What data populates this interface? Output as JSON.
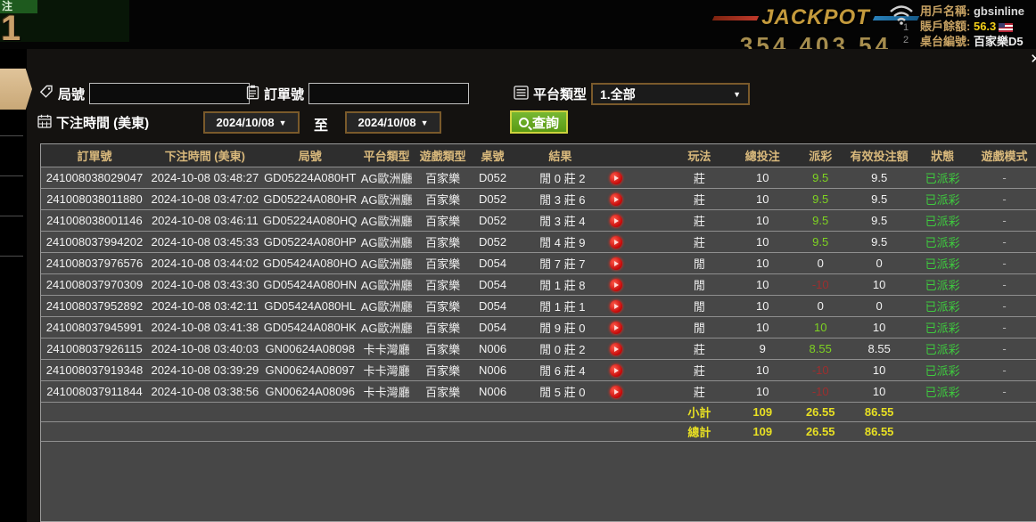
{
  "icons": {
    "dropdown_arrow": "▼",
    "close": "✕"
  },
  "top_bar": {
    "bet_label": "注",
    "bet_number": "1",
    "jackpot_label": "JACKPOT",
    "jackpot_value": "354 403 54",
    "user_label": "用戶名稱:",
    "user_value": "gbsinline",
    "balance_label": "賬戶餘額:",
    "balance_value": "56.3",
    "table_label": "桌台編號:",
    "table_value": "百家樂D5",
    "marker_1": "1",
    "marker_2": "2"
  },
  "modal": {
    "filters": {
      "round_label": "局號",
      "round_value": "",
      "order_label": "訂單號",
      "order_value": "",
      "platform_label": "平台類型",
      "platform_value": "1.全部",
      "time_label": "下注時間 (美東)",
      "date_from": "2024/10/08",
      "to_label": "至",
      "date_to": "2024/10/08",
      "search_label": "查詢"
    },
    "table": {
      "headers": [
        "訂單號",
        "下注時間 (美東)",
        "局號",
        "平台類型",
        "遊戲類型",
        "桌號",
        "結果",
        "玩法",
        "總投注",
        "派彩",
        "有效投注額",
        "狀態",
        "遊戲模式"
      ],
      "rows": [
        {
          "order": "241008038029047",
          "time": "2024-10-08 03:48:27",
          "round": "GD05224A080HT",
          "platform": "AG歐洲廳",
          "game": "百家樂",
          "table": "D052",
          "result": "閒 0 莊 2",
          "play": "莊",
          "total_bet": "10",
          "payout": "9.5",
          "payout_tone": "pos",
          "valid_bet": "9.5",
          "status": "已派彩",
          "mode": "-"
        },
        {
          "order": "241008038011880",
          "time": "2024-10-08 03:47:02",
          "round": "GD05224A080HR",
          "platform": "AG歐洲廳",
          "game": "百家樂",
          "table": "D052",
          "result": "閒 3 莊 6",
          "play": "莊",
          "total_bet": "10",
          "payout": "9.5",
          "payout_tone": "pos",
          "valid_bet": "9.5",
          "status": "已派彩",
          "mode": "-"
        },
        {
          "order": "241008038001146",
          "time": "2024-10-08 03:46:11",
          "round": "GD05224A080HQ",
          "platform": "AG歐洲廳",
          "game": "百家樂",
          "table": "D052",
          "result": "閒 3 莊 4",
          "play": "莊",
          "total_bet": "10",
          "payout": "9.5",
          "payout_tone": "pos",
          "valid_bet": "9.5",
          "status": "已派彩",
          "mode": "-"
        },
        {
          "order": "241008037994202",
          "time": "2024-10-08 03:45:33",
          "round": "GD05224A080HP",
          "platform": "AG歐洲廳",
          "game": "百家樂",
          "table": "D052",
          "result": "閒 4 莊 9",
          "play": "莊",
          "total_bet": "10",
          "payout": "9.5",
          "payout_tone": "pos",
          "valid_bet": "9.5",
          "status": "已派彩",
          "mode": "-"
        },
        {
          "order": "241008037976576",
          "time": "2024-10-08 03:44:02",
          "round": "GD05424A080HO",
          "platform": "AG歐洲廳",
          "game": "百家樂",
          "table": "D054",
          "result": "閒 7 莊 7",
          "play": "閒",
          "total_bet": "10",
          "payout": "0",
          "payout_tone": "zero",
          "valid_bet": "0",
          "status": "已派彩",
          "mode": "-"
        },
        {
          "order": "241008037970309",
          "time": "2024-10-08 03:43:30",
          "round": "GD05424A080HN",
          "platform": "AG歐洲廳",
          "game": "百家樂",
          "table": "D054",
          "result": "閒 1 莊 8",
          "play": "閒",
          "total_bet": "10",
          "payout": "-10",
          "payout_tone": "neg",
          "valid_bet": "10",
          "status": "已派彩",
          "mode": "-"
        },
        {
          "order": "241008037952892",
          "time": "2024-10-08 03:42:11",
          "round": "GD05424A080HL",
          "platform": "AG歐洲廳",
          "game": "百家樂",
          "table": "D054",
          "result": "閒 1 莊 1",
          "play": "閒",
          "total_bet": "10",
          "payout": "0",
          "payout_tone": "zero",
          "valid_bet": "0",
          "status": "已派彩",
          "mode": "-"
        },
        {
          "order": "241008037945991",
          "time": "2024-10-08 03:41:38",
          "round": "GD05424A080HK",
          "platform": "AG歐洲廳",
          "game": "百家樂",
          "table": "D054",
          "result": "閒 9 莊 0",
          "play": "閒",
          "total_bet": "10",
          "payout": "10",
          "payout_tone": "pos",
          "valid_bet": "10",
          "status": "已派彩",
          "mode": "-"
        },
        {
          "order": "241008037926115",
          "time": "2024-10-08 03:40:03",
          "round": "GN00624A08098",
          "platform": "卡卡灣廳",
          "game": "百家樂",
          "table": "N006",
          "result": "閒 0 莊 2",
          "play": "莊",
          "total_bet": "9",
          "payout": "8.55",
          "payout_tone": "pos",
          "valid_bet": "8.55",
          "status": "已派彩",
          "mode": "-"
        },
        {
          "order": "241008037919348",
          "time": "2024-10-08 03:39:29",
          "round": "GN00624A08097",
          "platform": "卡卡灣廳",
          "game": "百家樂",
          "table": "N006",
          "result": "閒 6 莊 4",
          "play": "莊",
          "total_bet": "10",
          "payout": "-10",
          "payout_tone": "neg",
          "valid_bet": "10",
          "status": "已派彩",
          "mode": "-"
        },
        {
          "order": "241008037911844",
          "time": "2024-10-08 03:38:56",
          "round": "GN00624A08096",
          "platform": "卡卡灣廳",
          "game": "百家樂",
          "table": "N006",
          "result": "閒 5 莊 0",
          "play": "莊",
          "total_bet": "10",
          "payout": "-10",
          "payout_tone": "neg",
          "valid_bet": "10",
          "status": "已派彩",
          "mode": "-"
        }
      ],
      "subtotal": {
        "label": "小計",
        "total_bet": "109",
        "payout": "26.55",
        "valid_bet": "86.55"
      },
      "total": {
        "label": "總計",
        "total_bet": "109",
        "payout": "26.55",
        "valid_bet": "86.55"
      }
    }
  },
  "colors": {
    "accent_gold": "#d9b97c",
    "payout_pos": "#7ed321",
    "payout_neg": "#9e2e2e",
    "status_green": "#3ecb3e",
    "totals_yellow": "#e8e023",
    "button_green": "#5a9a14",
    "border_brown": "#7a5a2b"
  }
}
